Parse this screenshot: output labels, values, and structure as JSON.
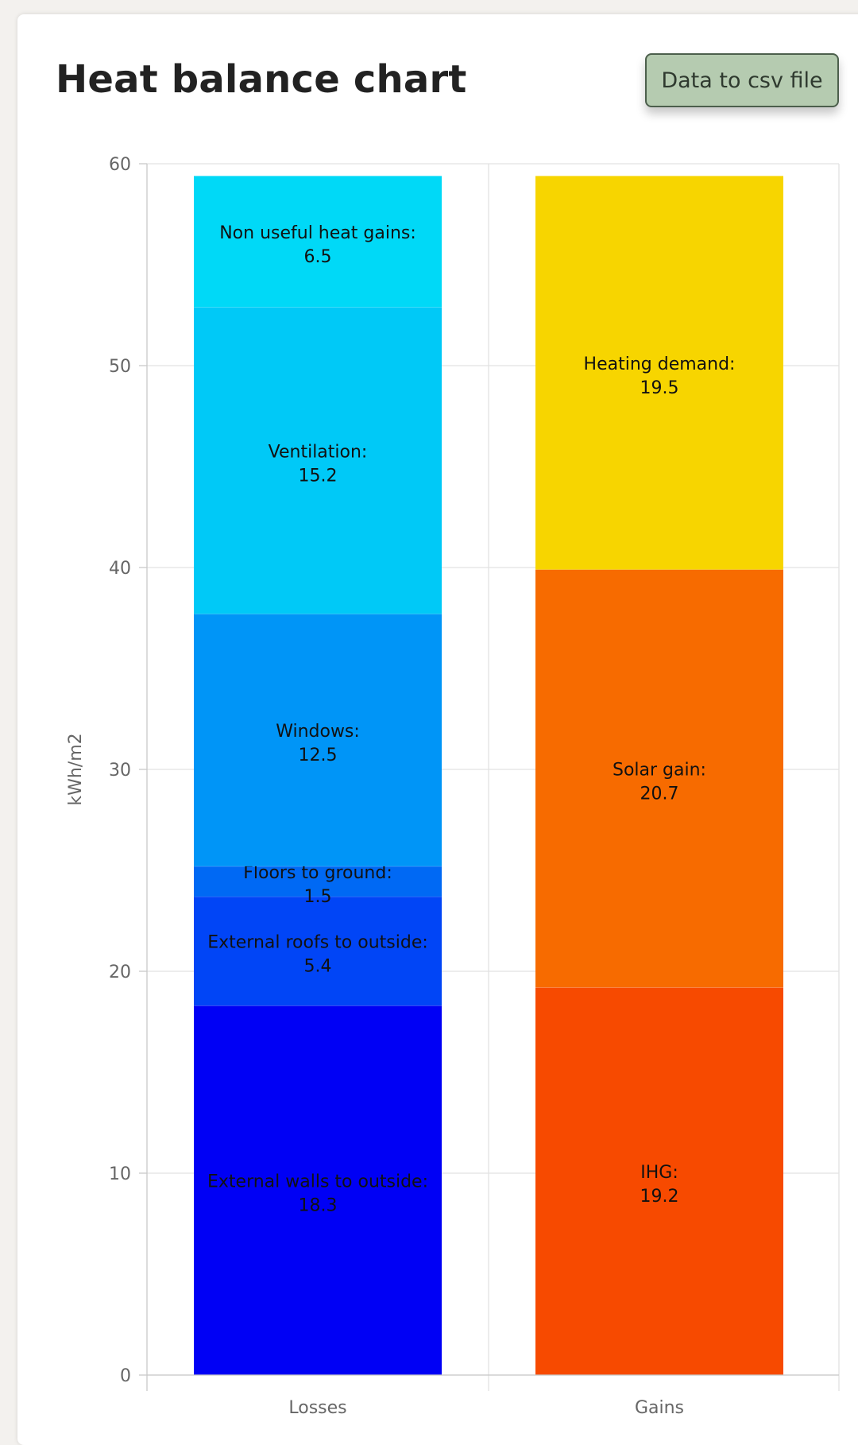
{
  "title": "Heat balance chart",
  "export_button_label": "Data to csv file",
  "chart_data": {
    "type": "bar",
    "stacked": true,
    "categories": [
      "Losses",
      "Gains"
    ],
    "ylabel": "kWh/m2",
    "ylim": [
      0,
      60
    ],
    "yticks": [
      0,
      10,
      20,
      30,
      40,
      50,
      60
    ],
    "grid": true,
    "segments": [
      {
        "category": "Losses",
        "label": "External walls to outside:",
        "value": 18.3,
        "color": "#0000f5"
      },
      {
        "category": "Losses",
        "label": "External roofs to outside:",
        "value": 5.4,
        "color": "#0145f6"
      },
      {
        "category": "Losses",
        "label": "Floors to ground:",
        "value": 1.5,
        "color": "#0069f4"
      },
      {
        "category": "Losses",
        "label": "Windows:",
        "value": 12.5,
        "color": "#0095f7"
      },
      {
        "category": "Losses",
        "label": "Ventilation:",
        "value": 15.2,
        "color": "#00c9f7"
      },
      {
        "category": "Losses",
        "label": "Non useful heat gains:",
        "value": 6.5,
        "color": "#00d9f7"
      },
      {
        "category": "Gains",
        "label": "IHG:",
        "value": 19.2,
        "color": "#f74a00"
      },
      {
        "category": "Gains",
        "label": "Solar gain:",
        "value": 20.7,
        "color": "#f76b00"
      },
      {
        "category": "Gains",
        "label": "Heating demand:",
        "value": 19.5,
        "color": "#f7d500"
      }
    ]
  }
}
